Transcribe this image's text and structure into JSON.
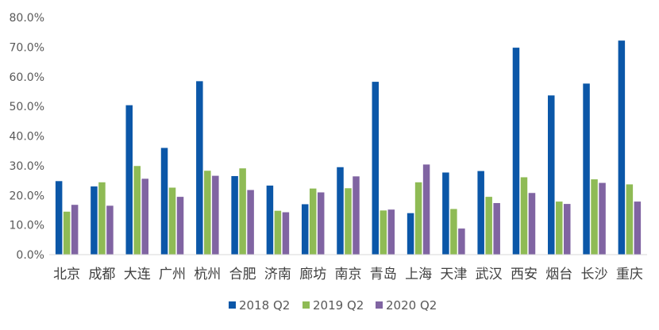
{
  "chart_data": {
    "type": "bar",
    "categories": [
      "北京",
      "成都",
      "大连",
      "广州",
      "杭州",
      "合肥",
      "济南",
      "廊坊",
      "南京",
      "青岛",
      "上海",
      "天津",
      "武汉",
      "西安",
      "烟台",
      "长沙",
      "重庆"
    ],
    "series": [
      {
        "name": "2018 Q2",
        "color": "#0b57a8",
        "values": [
          24.8,
          23.0,
          50.4,
          36.0,
          58.5,
          26.5,
          23.3,
          17.0,
          29.5,
          58.3,
          14.0,
          27.7,
          28.2,
          69.8,
          53.7,
          57.7,
          72.2
        ]
      },
      {
        "name": "2019 Q2",
        "color": "#8fbb55",
        "values": [
          14.5,
          24.4,
          29.9,
          22.6,
          28.3,
          29.1,
          14.8,
          22.3,
          22.4,
          14.9,
          24.4,
          15.4,
          19.5,
          26.1,
          17.9,
          25.4,
          23.7
        ]
      },
      {
        "name": "2020 Q2",
        "color": "#8064a2",
        "values": [
          16.8,
          16.5,
          25.6,
          19.5,
          26.6,
          21.8,
          14.3,
          21.0,
          26.4,
          15.2,
          30.4,
          8.8,
          17.4,
          20.8,
          17.1,
          24.2,
          17.9
        ]
      }
    ],
    "ylim": [
      0,
      80
    ],
    "yticks": [
      "0.0%",
      "10.0%",
      "20.0%",
      "30.0%",
      "40.0%",
      "50.0%",
      "60.0%",
      "70.0%",
      "80.0%"
    ],
    "yticks_values": [
      0,
      10,
      20,
      30,
      40,
      50,
      60,
      70,
      80
    ],
    "grid": false,
    "legend": "bottom-center"
  }
}
